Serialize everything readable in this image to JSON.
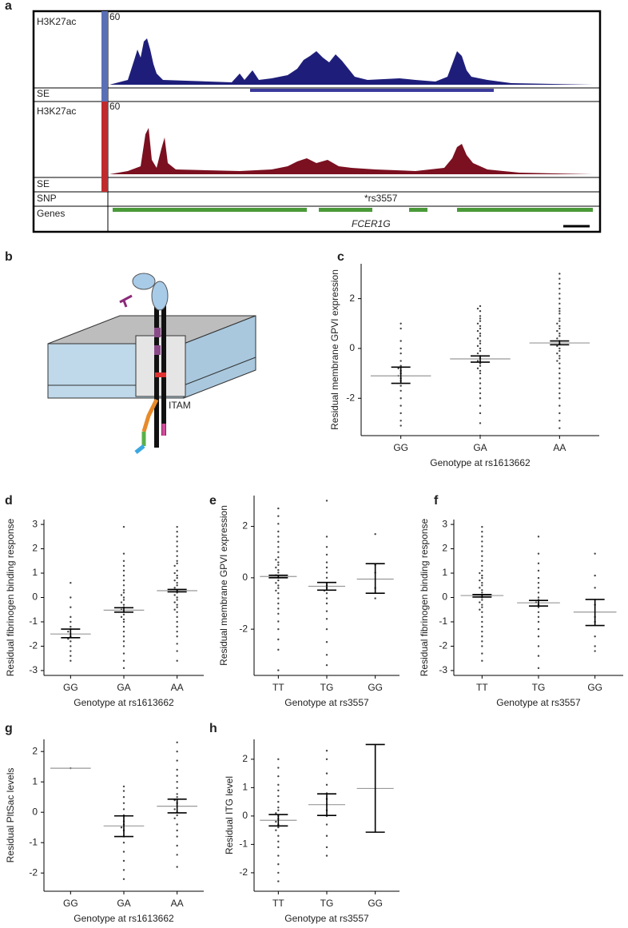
{
  "panel_a": {
    "label": "a",
    "tracks": [
      {
        "name": "H3K27ac",
        "scale": 60
      },
      {
        "name": "SE"
      },
      {
        "name": "H3K27ac",
        "scale": 60
      },
      {
        "name": "SE"
      },
      {
        "name": "SNP",
        "annotation": "*rs3557"
      },
      {
        "name": "Genes",
        "annotation": "FCER1G"
      }
    ]
  },
  "panel_b": {
    "label": "b",
    "annotation": "ITAM"
  },
  "chart_data": [
    {
      "type": "dot",
      "panel": "c",
      "y_label": "Residual membrane GPVI expression",
      "x_label": "Genotype at rs1613662",
      "categories": [
        "GG",
        "GA",
        "AA"
      ],
      "ylim": [
        -3.5,
        3.4
      ],
      "yticks": [
        -2,
        0,
        2
      ],
      "groups": [
        {
          "mean": -1.1,
          "ci": [
            -1.4,
            -0.75
          ],
          "points": [
            1.0,
            0.8,
            0.3,
            0.0,
            -0.2,
            -0.5,
            -0.7,
            -0.8,
            -0.9,
            -1.0,
            -1.1,
            -1.2,
            -1.3,
            -1.5,
            -1.7,
            -2.0,
            -2.3,
            -2.6,
            -2.9,
            -3.1
          ]
        },
        {
          "mean": -0.42,
          "ci": [
            -0.55,
            -0.3
          ],
          "points": [
            1.7,
            1.6,
            1.5,
            1.3,
            1.2,
            1.1,
            1.0,
            0.9,
            0.8,
            0.7,
            0.6,
            0.5,
            0.4,
            0.3,
            0.2,
            0.1,
            0.0,
            -0.1,
            -0.2,
            -0.3,
            -0.4,
            -0.5,
            -0.6,
            -0.7,
            -0.8,
            -0.9,
            -1.0,
            -1.2,
            -1.4,
            -1.6,
            -1.8,
            -2.0,
            -2.3,
            -2.6,
            -3.0,
            -3.5
          ]
        },
        {
          "mean": 0.22,
          "ci": [
            0.15,
            0.3
          ],
          "points": [
            3.0,
            2.8,
            2.6,
            2.4,
            2.2,
            2.0,
            1.8,
            1.6,
            1.5,
            1.4,
            1.2,
            1.1,
            1.0,
            0.9,
            0.8,
            0.7,
            0.6,
            0.5,
            0.4,
            0.3,
            0.2,
            0.1,
            0.0,
            -0.1,
            -0.2,
            -0.3,
            -0.4,
            -0.5,
            -0.6,
            -0.8,
            -1.0,
            -1.2,
            -1.4,
            -1.6,
            -1.8,
            -2.0,
            -2.3,
            -2.6,
            -2.9,
            -3.2
          ]
        }
      ]
    },
    {
      "type": "dot",
      "panel": "d",
      "y_label": "Residual fibrinogen binding response",
      "x_label": "Genotype at rs1613662",
      "categories": [
        "GG",
        "GA",
        "AA"
      ],
      "ylim": [
        -3.2,
        3.2
      ],
      "yticks": [
        -3,
        -2,
        -1,
        0,
        1,
        2,
        3
      ],
      "groups": [
        {
          "mean": -1.5,
          "ci": [
            -1.65,
            -1.3
          ],
          "points": [
            0.6,
            0.0,
            -0.4,
            -0.8,
            -1.0,
            -1.2,
            -1.3,
            -1.4,
            -1.5,
            -1.6,
            -1.7,
            -1.8,
            -2.0,
            -2.2,
            -2.4,
            -2.6
          ]
        },
        {
          "mean": -0.52,
          "ci": [
            -0.6,
            -0.42
          ],
          "points": [
            2.9,
            1.8,
            1.5,
            1.3,
            1.1,
            0.9,
            0.7,
            0.5,
            0.3,
            0.2,
            0.1,
            0.0,
            -0.1,
            -0.2,
            -0.3,
            -0.4,
            -0.5,
            -0.6,
            -0.7,
            -0.8,
            -0.9,
            -1.0,
            -1.2,
            -1.4,
            -1.6,
            -1.8,
            -2.0,
            -2.3,
            -2.6,
            -2.9
          ]
        },
        {
          "mean": 0.28,
          "ci": [
            0.23,
            0.33
          ],
          "points": [
            2.9,
            2.7,
            2.5,
            2.3,
            2.1,
            1.9,
            1.7,
            1.5,
            1.4,
            1.3,
            1.1,
            1.0,
            0.9,
            0.8,
            0.7,
            0.6,
            0.5,
            0.4,
            0.3,
            0.2,
            0.1,
            0.0,
            -0.1,
            -0.2,
            -0.3,
            -0.4,
            -0.5,
            -0.6,
            -0.8,
            -1.0,
            -1.2,
            -1.4,
            -1.6,
            -1.9,
            -2.2,
            -2.6
          ]
        }
      ]
    },
    {
      "type": "dot",
      "panel": "e",
      "y_label": "Residual membrane GPVI expression",
      "x_label": "Genotype at rs3557",
      "categories": [
        "TT",
        "TG",
        "GG"
      ],
      "ylim": [
        -3.8,
        3.2
      ],
      "yticks": [
        -2,
        0,
        2
      ],
      "groups": [
        {
          "mean": 0.05,
          "ci": [
            0.0,
            0.1
          ],
          "points": [
            2.7,
            2.4,
            2.1,
            1.8,
            1.6,
            1.4,
            1.2,
            1.0,
            0.8,
            0.7,
            0.6,
            0.5,
            0.4,
            0.3,
            0.2,
            0.1,
            0.0,
            -0.1,
            -0.2,
            -0.3,
            -0.4,
            -0.5,
            -0.6,
            -0.8,
            -1.0,
            -1.2,
            -1.4,
            -1.7,
            -2.0,
            -2.4,
            -2.8,
            -3.6
          ]
        },
        {
          "mean": -0.33,
          "ci": [
            -0.48,
            -0.18
          ],
          "points": [
            3.0,
            1.6,
            1.2,
            0.9,
            0.6,
            0.4,
            0.2,
            0.0,
            -0.2,
            -0.3,
            -0.4,
            -0.5,
            -0.6,
            -0.8,
            -1.0,
            -1.3,
            -1.6,
            -2.0,
            -2.5,
            -3.0,
            -3.4
          ]
        },
        {
          "mean": -0.05,
          "ci": [
            -0.6,
            0.55
          ],
          "points": [
            1.7,
            0.5,
            0.2,
            -0.4,
            -0.8
          ]
        }
      ]
    },
    {
      "type": "dot",
      "panel": "f",
      "y_label": "Residual fibrinogen binding response",
      "x_label": "Genotype at rs3557",
      "categories": [
        "TT",
        "TG",
        "GG"
      ],
      "ylim": [
        -3.2,
        3.2
      ],
      "yticks": [
        -3,
        -2,
        -1,
        0,
        1,
        2,
        3
      ],
      "groups": [
        {
          "mean": 0.08,
          "ci": [
            0.02,
            0.12
          ],
          "points": [
            2.9,
            2.7,
            2.5,
            2.3,
            2.1,
            1.9,
            1.7,
            1.5,
            1.3,
            1.1,
            1.0,
            0.9,
            0.8,
            0.7,
            0.6,
            0.5,
            0.4,
            0.3,
            0.2,
            0.1,
            0.0,
            -0.1,
            -0.2,
            -0.3,
            -0.4,
            -0.5,
            -0.6,
            -0.8,
            -1.0,
            -1.2,
            -1.4,
            -1.6,
            -1.8,
            -2.0,
            -2.3,
            -2.6
          ]
        },
        {
          "mean": -0.22,
          "ci": [
            -0.35,
            -0.12
          ],
          "points": [
            2.5,
            1.8,
            1.4,
            1.1,
            0.8,
            0.6,
            0.4,
            0.2,
            0.0,
            -0.1,
            -0.2,
            -0.3,
            -0.4,
            -0.6,
            -0.8,
            -1.0,
            -1.3,
            -1.6,
            -2.0,
            -2.4,
            -2.9
          ]
        },
        {
          "mean": -0.6,
          "ci": [
            -1.15,
            -0.08
          ],
          "points": [
            1.8,
            0.9,
            0.4,
            -0.3,
            -0.8,
            -1.0,
            -1.6,
            -2.0,
            -2.2
          ]
        }
      ]
    },
    {
      "type": "dot",
      "panel": "g",
      "y_label": "Residual PltSac levels",
      "x_label": "Genotype at rs1613662",
      "categories": [
        "GG",
        "GA",
        "AA"
      ],
      "ylim": [
        -2.6,
        2.4
      ],
      "yticks": [
        -2,
        -1,
        0,
        1,
        2
      ],
      "groups": [
        {
          "mean": 1.45,
          "points": [
            1.45
          ]
        },
        {
          "mean": -0.45,
          "ci": [
            -0.8,
            -0.12
          ],
          "points": [
            0.85,
            0.7,
            0.5,
            0.3,
            0.1,
            -0.1,
            -0.3,
            -0.4,
            -0.5,
            -0.6,
            -0.8,
            -1.0,
            -1.3,
            -1.6,
            -1.9,
            -2.2
          ]
        },
        {
          "mean": 0.2,
          "ci": [
            -0.02,
            0.43
          ],
          "points": [
            2.3,
            2.0,
            1.7,
            1.4,
            1.2,
            1.0,
            0.8,
            0.6,
            0.5,
            0.4,
            0.3,
            0.2,
            0.1,
            0.0,
            -0.1,
            -0.2,
            -0.4,
            -0.6,
            -0.8,
            -1.1,
            -1.4,
            -1.8
          ]
        }
      ]
    },
    {
      "type": "dot",
      "panel": "h",
      "y_label": "Residual ITG level",
      "x_label": "Genotype at rs3557",
      "categories": [
        "TT",
        "TG",
        "GG"
      ],
      "ylim": [
        -2.65,
        2.7
      ],
      "yticks": [
        -2,
        -1,
        0,
        1,
        2
      ],
      "groups": [
        {
          "mean": -0.15,
          "ci": [
            -0.35,
            0.05
          ],
          "points": [
            2.0,
            1.7,
            1.4,
            1.1,
            0.9,
            0.7,
            0.5,
            0.3,
            0.2,
            0.1,
            0.0,
            -0.1,
            -0.2,
            -0.3,
            -0.4,
            -0.5,
            -0.7,
            -0.9,
            -1.1,
            -1.4,
            -1.7,
            -2.0,
            -2.3
          ]
        },
        {
          "mean": 0.4,
          "ci": [
            0.02,
            0.78
          ],
          "points": [
            2.3,
            2.0,
            1.5,
            1.1,
            0.8,
            0.6,
            0.4,
            0.2,
            0.0,
            -0.3,
            -0.7,
            -1.1,
            -1.4
          ]
        },
        {
          "mean": 0.97,
          "ci": [
            -0.57,
            2.52
          ]
        }
      ]
    }
  ]
}
